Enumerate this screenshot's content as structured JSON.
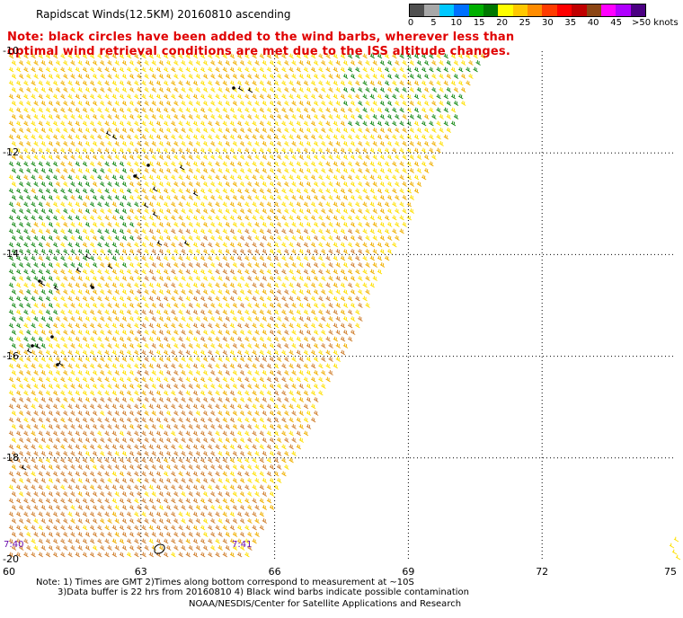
{
  "title": "Rapidscat Winds(12.5KM) 20160810 ascending",
  "note_lines": [
    "Note: black circles have been added to the wind barbs, wherever less than",
    "   optimal wind retrieval conditions are met due to the ISS altitude changes."
  ],
  "legend": {
    "labels": [
      "0",
      "5",
      "10",
      "15",
      "20",
      "25",
      "30",
      "35",
      "40",
      "45",
      ">50 knots"
    ],
    "colors": [
      "#505050",
      "#a8a8a8",
      "#00c8ff",
      "#0070ff",
      "#00b000",
      "#007800",
      "#ffff00",
      "#ffc800",
      "#ff8c00",
      "#ff3c00",
      "#ff0000",
      "#c00000",
      "#8b4513",
      "#ff00ff",
      "#b000ff",
      "#4b0082"
    ]
  },
  "axes": {
    "x_ticks": [
      "60",
      "63",
      "66",
      "69",
      "72",
      "75"
    ],
    "y_ticks": [
      "-10",
      "-12",
      "-14",
      "-16",
      "-18",
      "-20"
    ]
  },
  "times": [
    "7:40",
    "7:41"
  ],
  "footnotes": [
    "Note: 1) Times are GMT 2)Times along bottom correspond to measurement at ~10S",
    "3)Data buffer is 22 hrs from 20160810 4) Black wind barbs indicate possible contamination",
    "NOAA/NESDIS/Center for Satellite Applications and Research"
  ],
  "map_data": {
    "lon_range": [
      60,
      75
    ],
    "lat_range": [
      -20,
      -10
    ],
    "swath_edge": "east edge from 65.4E,-20 to 70.8E,-10",
    "barb_colors": {
      "weak": "#1a8c1a",
      "moderate": "#ffe000",
      "fresh": "#f0b000",
      "strong": "#d08030"
    }
  }
}
